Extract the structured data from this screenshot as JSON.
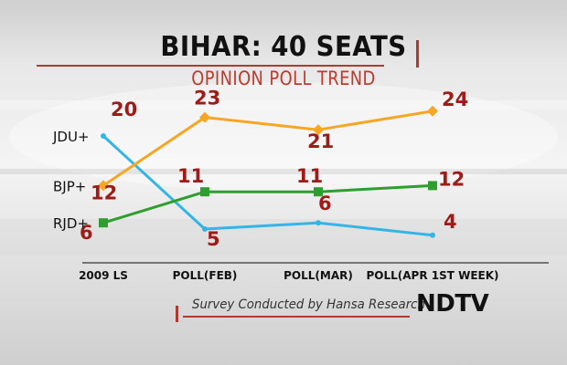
{
  "header": {
    "title": "BIHAR: 40 SEATS",
    "subtitle": "OPINION POLL TREND"
  },
  "footer": {
    "source": "Survey Conducted by Hansa Research",
    "logo": "NDTV"
  },
  "colors": {
    "accent_red": "#b03a2e",
    "label_red": "#9e1b17"
  },
  "chart_data": {
    "type": "line",
    "title": "BIHAR: 40 SEATS",
    "subtitle": "OPINION POLL TREND",
    "categories": [
      "2009 LS",
      "POLL(FEB)",
      "POLL(MAR)",
      "POLL(APR 1ST WEEK)"
    ],
    "ylim": [
      0,
      40
    ],
    "grid": false,
    "legend": "left",
    "series": [
      {
        "name": "JDU+",
        "values": [
          20,
          5,
          6,
          4
        ],
        "color": "#33b5e5",
        "marker": "none"
      },
      {
        "name": "BJP+",
        "values": [
          12,
          23,
          21,
          24
        ],
        "color": "#f5a623",
        "marker": "diamond"
      },
      {
        "name": "RJD+",
        "values": [
          6,
          11,
          11,
          12
        ],
        "color": "#2e9e2e",
        "marker": "square"
      }
    ]
  }
}
